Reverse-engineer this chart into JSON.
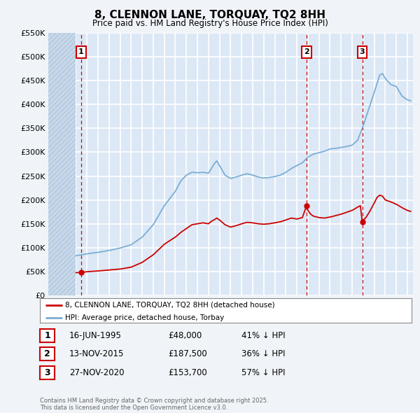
{
  "title": "8, CLENNON LANE, TORQUAY, TQ2 8HH",
  "subtitle": "Price paid vs. HM Land Registry's House Price Index (HPI)",
  "bg_color": "#f0f4f8",
  "plot_bg_color": "#dce8f5",
  "hatch_color": "#c8d8e8",
  "grid_color": "#ffffff",
  "red_line_color": "#cc0000",
  "blue_line_color": "#7aaed6",
  "ylim": [
    0,
    550000
  ],
  "yticks": [
    0,
    50000,
    100000,
    150000,
    200000,
    250000,
    300000,
    350000,
    400000,
    450000,
    500000,
    550000
  ],
  "ytick_labels": [
    "£0",
    "£50K",
    "£100K",
    "£150K",
    "£200K",
    "£250K",
    "£300K",
    "£350K",
    "£400K",
    "£450K",
    "£500K",
    "£550K"
  ],
  "xmin": 1992.5,
  "xmax": 2025.5,
  "hpi_start_year": 1995.0,
  "transactions": [
    {
      "date": 1995.46,
      "price": 48000,
      "label": "1"
    },
    {
      "date": 2015.87,
      "price": 187500,
      "label": "2"
    },
    {
      "date": 2020.92,
      "price": 153700,
      "label": "3"
    }
  ],
  "legend_label_red": "8, CLENNON LANE, TORQUAY, TQ2 8HH (detached house)",
  "legend_label_blue": "HPI: Average price, detached house, Torbay",
  "table_rows": [
    {
      "num": "1",
      "date": "16-JUN-1995",
      "price": "£48,000",
      "pct": "41% ↓ HPI"
    },
    {
      "num": "2",
      "date": "13-NOV-2015",
      "price": "£187,500",
      "pct": "36% ↓ HPI"
    },
    {
      "num": "3",
      "date": "27-NOV-2020",
      "price": "£153,700",
      "pct": "57% ↓ HPI"
    }
  ],
  "footnote": "Contains HM Land Registry data © Crown copyright and database right 2025.\nThis data is licensed under the Open Government Licence v3.0."
}
